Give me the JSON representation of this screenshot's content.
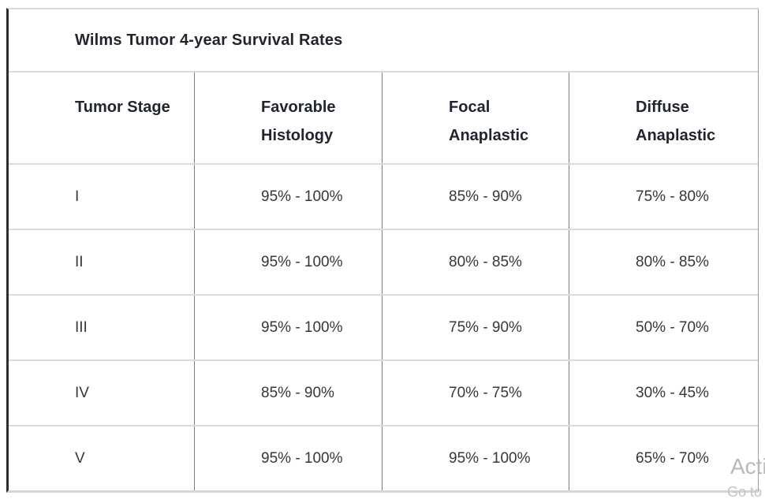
{
  "table": {
    "title": "Wilms Tumor 4-year Survival Rates",
    "columns": [
      "Tumor Stage",
      "Favorable Histology",
      "Focal Anaplastic",
      "Diffuse Anaplastic"
    ],
    "rows": [
      [
        "I",
        "95% - 100%",
        "85% - 90%",
        "75% - 80%"
      ],
      [
        "II",
        "95% - 100%",
        "80% - 85%",
        "80% - 85%"
      ],
      [
        "III",
        "95% - 100%",
        "75% - 90%",
        "50% - 70%"
      ],
      [
        "IV",
        "85% - 90%",
        "70% - 75%",
        "30% - 45%"
      ],
      [
        "V",
        "95% - 100%",
        "95% - 100%",
        "65% - 70%"
      ]
    ]
  },
  "watermark": {
    "line1": "Acti",
    "line2": "Go to"
  },
  "colors": {
    "text_primary": "#20252e",
    "text_data": "#34383c",
    "border_dark": "#2e2e2e",
    "border_light": "#dbdbdb",
    "border_mid": "#7d7d7d",
    "watermark_text": "#b9b9b9"
  }
}
